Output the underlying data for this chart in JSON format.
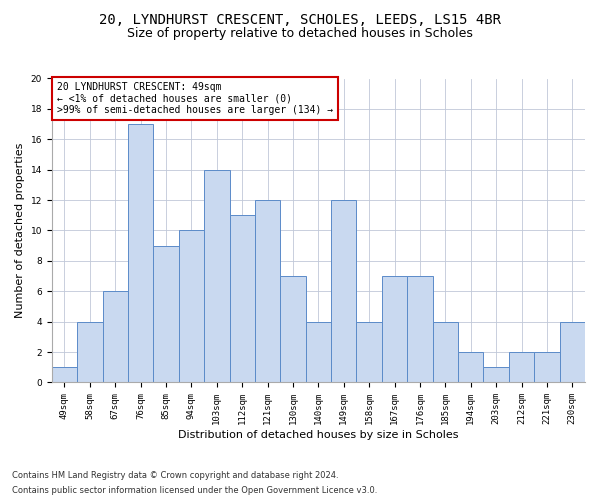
{
  "title_line1": "20, LYNDHURST CRESCENT, SCHOLES, LEEDS, LS15 4BR",
  "title_line2": "Size of property relative to detached houses in Scholes",
  "xlabel": "Distribution of detached houses by size in Scholes",
  "ylabel": "Number of detached properties",
  "categories": [
    "49sqm",
    "58sqm",
    "67sqm",
    "76sqm",
    "85sqm",
    "94sqm",
    "103sqm",
    "112sqm",
    "121sqm",
    "130sqm",
    "140sqm",
    "149sqm",
    "158sqm",
    "167sqm",
    "176sqm",
    "185sqm",
    "194sqm",
    "203sqm",
    "212sqm",
    "221sqm",
    "230sqm"
  ],
  "values": [
    1,
    4,
    6,
    17,
    9,
    10,
    14,
    11,
    12,
    7,
    4,
    12,
    4,
    7,
    7,
    4,
    2,
    1,
    2,
    2,
    4
  ],
  "bar_color": "#c9d9f0",
  "bar_edge_color": "#5b8bc9",
  "annotation_box_text": "20 LYNDHURST CRESCENT: 49sqm\n← <1% of detached houses are smaller (0)\n>99% of semi-detached houses are larger (134) →",
  "annotation_box_color": "#ffffff",
  "annotation_box_edge_color": "#cc0000",
  "ylim": [
    0,
    20
  ],
  "ytick_interval": 2,
  "footnote_line1": "Contains HM Land Registry data © Crown copyright and database right 2024.",
  "footnote_line2": "Contains public sector information licensed under the Open Government Licence v3.0.",
  "bg_color": "#ffffff",
  "grid_color": "#c0c8d8",
  "title_fontsize": 10,
  "subtitle_fontsize": 9,
  "axis_label_fontsize": 8,
  "tick_fontsize": 6.5,
  "annotation_fontsize": 7,
  "footnote_fontsize": 6
}
